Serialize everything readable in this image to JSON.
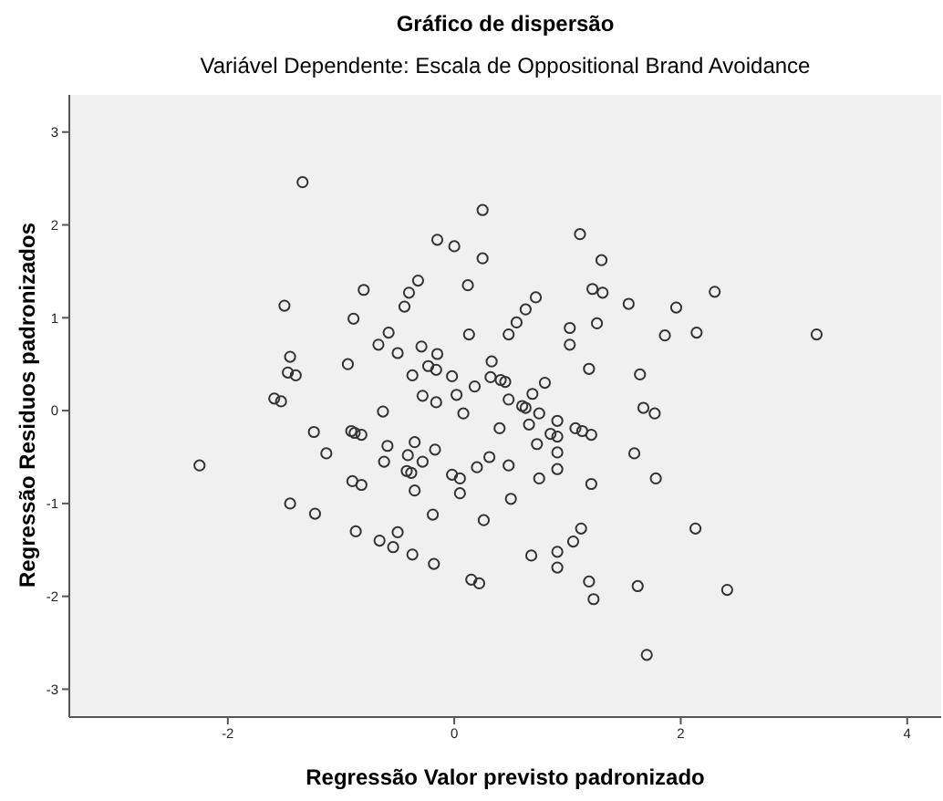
{
  "chart_data": {
    "type": "scatter",
    "title": "Gráfico de dispersão",
    "subtitle": "Variável Dependente: Escala de Oppositional Brand Avoidance",
    "xlabel": "Regressão Valor previsto padronizado",
    "ylabel": "Regressão Residuos padronizados",
    "x": [
      -1.34,
      -1.5,
      -1.45,
      -1.47,
      -1.4,
      -1.59,
      -1.53,
      -2.25,
      -1.24,
      -1.13,
      -0.94,
      -0.89,
      -0.8,
      -0.91,
      -0.88,
      -0.82,
      -0.63,
      -0.67,
      -0.58,
      -0.5,
      -0.44,
      -0.4,
      -0.32,
      -0.15,
      0.0,
      0.25,
      0.25,
      0.12,
      0.13,
      -0.29,
      -0.15,
      -0.23,
      -0.16,
      -0.37,
      -0.02,
      -0.28,
      -0.16,
      0.02,
      0.08,
      0.18,
      0.33,
      0.32,
      -0.59,
      -0.35,
      -0.41,
      -0.62,
      -0.28,
      -0.17,
      0.31,
      0.2,
      -0.42,
      -0.38,
      -0.02,
      0.05,
      -0.9,
      -0.82,
      -0.35,
      0.05,
      -1.45,
      -1.23,
      -0.19,
      0.26,
      -0.87,
      -0.5,
      -0.66,
      -0.54,
      -0.37,
      -0.18,
      0.15,
      0.22,
      1.11,
      1.3,
      1.22,
      1.31,
      1.26,
      1.54,
      1.96,
      2.3,
      1.86,
      2.14,
      3.2,
      1.02,
      1.02,
      1.19,
      1.64,
      1.67,
      1.77,
      1.59,
      0.72,
      0.63,
      0.55,
      0.48,
      0.41,
      0.45,
      0.8,
      0.48,
      0.69,
      0.6,
      0.63,
      0.75,
      0.4,
      0.66,
      0.91,
      0.85,
      0.91,
      1.07,
      1.13,
      1.21,
      0.73,
      0.91,
      0.48,
      0.91,
      0.75,
      1.21,
      1.78,
      0.5,
      1.12,
      1.05,
      0.91,
      0.91,
      0.68,
      2.13,
      1.19,
      1.23,
      1.62,
      2.41,
      1.7
    ],
    "values": [
      2.46,
      1.13,
      0.58,
      0.41,
      0.38,
      0.13,
      0.1,
      -0.59,
      -0.23,
      -0.46,
      0.5,
      0.99,
      1.3,
      -0.22,
      -0.24,
      -0.26,
      -0.01,
      0.71,
      0.84,
      0.62,
      1.12,
      1.27,
      1.4,
      1.84,
      1.77,
      2.16,
      1.64,
      1.35,
      0.82,
      0.69,
      0.61,
      0.48,
      0.44,
      0.38,
      0.37,
      0.16,
      0.09,
      0.17,
      -0.03,
      0.26,
      0.53,
      0.36,
      -0.38,
      -0.34,
      -0.48,
      -0.55,
      -0.55,
      -0.42,
      -0.5,
      -0.61,
      -0.65,
      -0.67,
      -0.69,
      -0.73,
      -0.76,
      -0.8,
      -0.86,
      -0.89,
      -1.0,
      -1.11,
      -1.12,
      -1.18,
      -1.3,
      -1.31,
      -1.4,
      -1.47,
      -1.55,
      -1.65,
      -1.82,
      -1.86,
      1.9,
      1.62,
      1.31,
      1.27,
      0.94,
      1.15,
      1.11,
      1.28,
      0.81,
      0.84,
      0.82,
      0.89,
      0.71,
      0.45,
      0.39,
      0.03,
      -0.03,
      -0.46,
      1.22,
      1.09,
      0.95,
      0.82,
      0.33,
      0.31,
      0.3,
      0.12,
      0.18,
      0.05,
      0.03,
      -0.03,
      -0.19,
      -0.15,
      -0.11,
      -0.25,
      -0.28,
      -0.19,
      -0.22,
      -0.26,
      -0.36,
      -0.45,
      -0.59,
      -0.63,
      -0.73,
      -0.79,
      -0.73,
      -0.95,
      -1.27,
      -1.41,
      -1.52,
      -1.69,
      -1.56,
      -1.27,
      -1.84,
      -2.03,
      -1.89,
      -1.93,
      -2.63
    ],
    "color": "#333333",
    "marker": "circle",
    "xlim": [
      -3.4,
      4.3
    ],
    "ylim": [
      -3.3,
      3.4
    ],
    "xticks": [
      -2,
      0,
      2,
      4
    ],
    "yticks": [
      -3,
      -2,
      -1,
      0,
      1,
      2,
      3
    ]
  }
}
